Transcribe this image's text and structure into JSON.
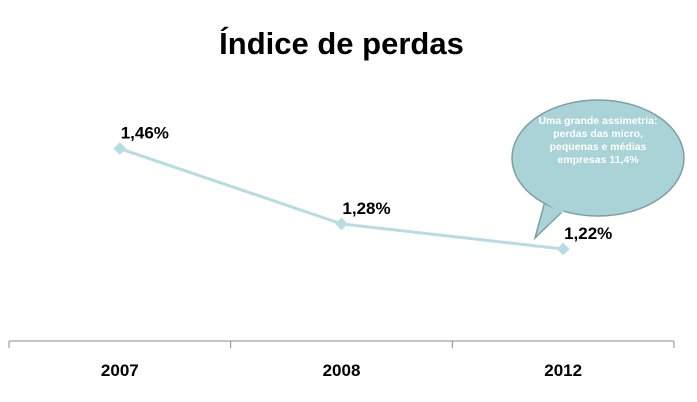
{
  "chart_data": {
    "type": "line",
    "title": "Índice de perdas",
    "categories": [
      "2007",
      "2008",
      "2012"
    ],
    "values": [
      1.46,
      1.28,
      1.22
    ],
    "data_labels": [
      "1,46%",
      "1,28%",
      "1,22%"
    ],
    "xlabel": "",
    "ylabel": "",
    "ylim": [
      1.0,
      1.6
    ],
    "grid": false,
    "legend": "none",
    "line_color": "#b7dde2",
    "callout": {
      "text": "Uma grande assimetria: perdas das micro, pequenas e médias empresas 11,4%",
      "fill": "#a9d3d6",
      "stroke": "#7d9fa3"
    }
  }
}
